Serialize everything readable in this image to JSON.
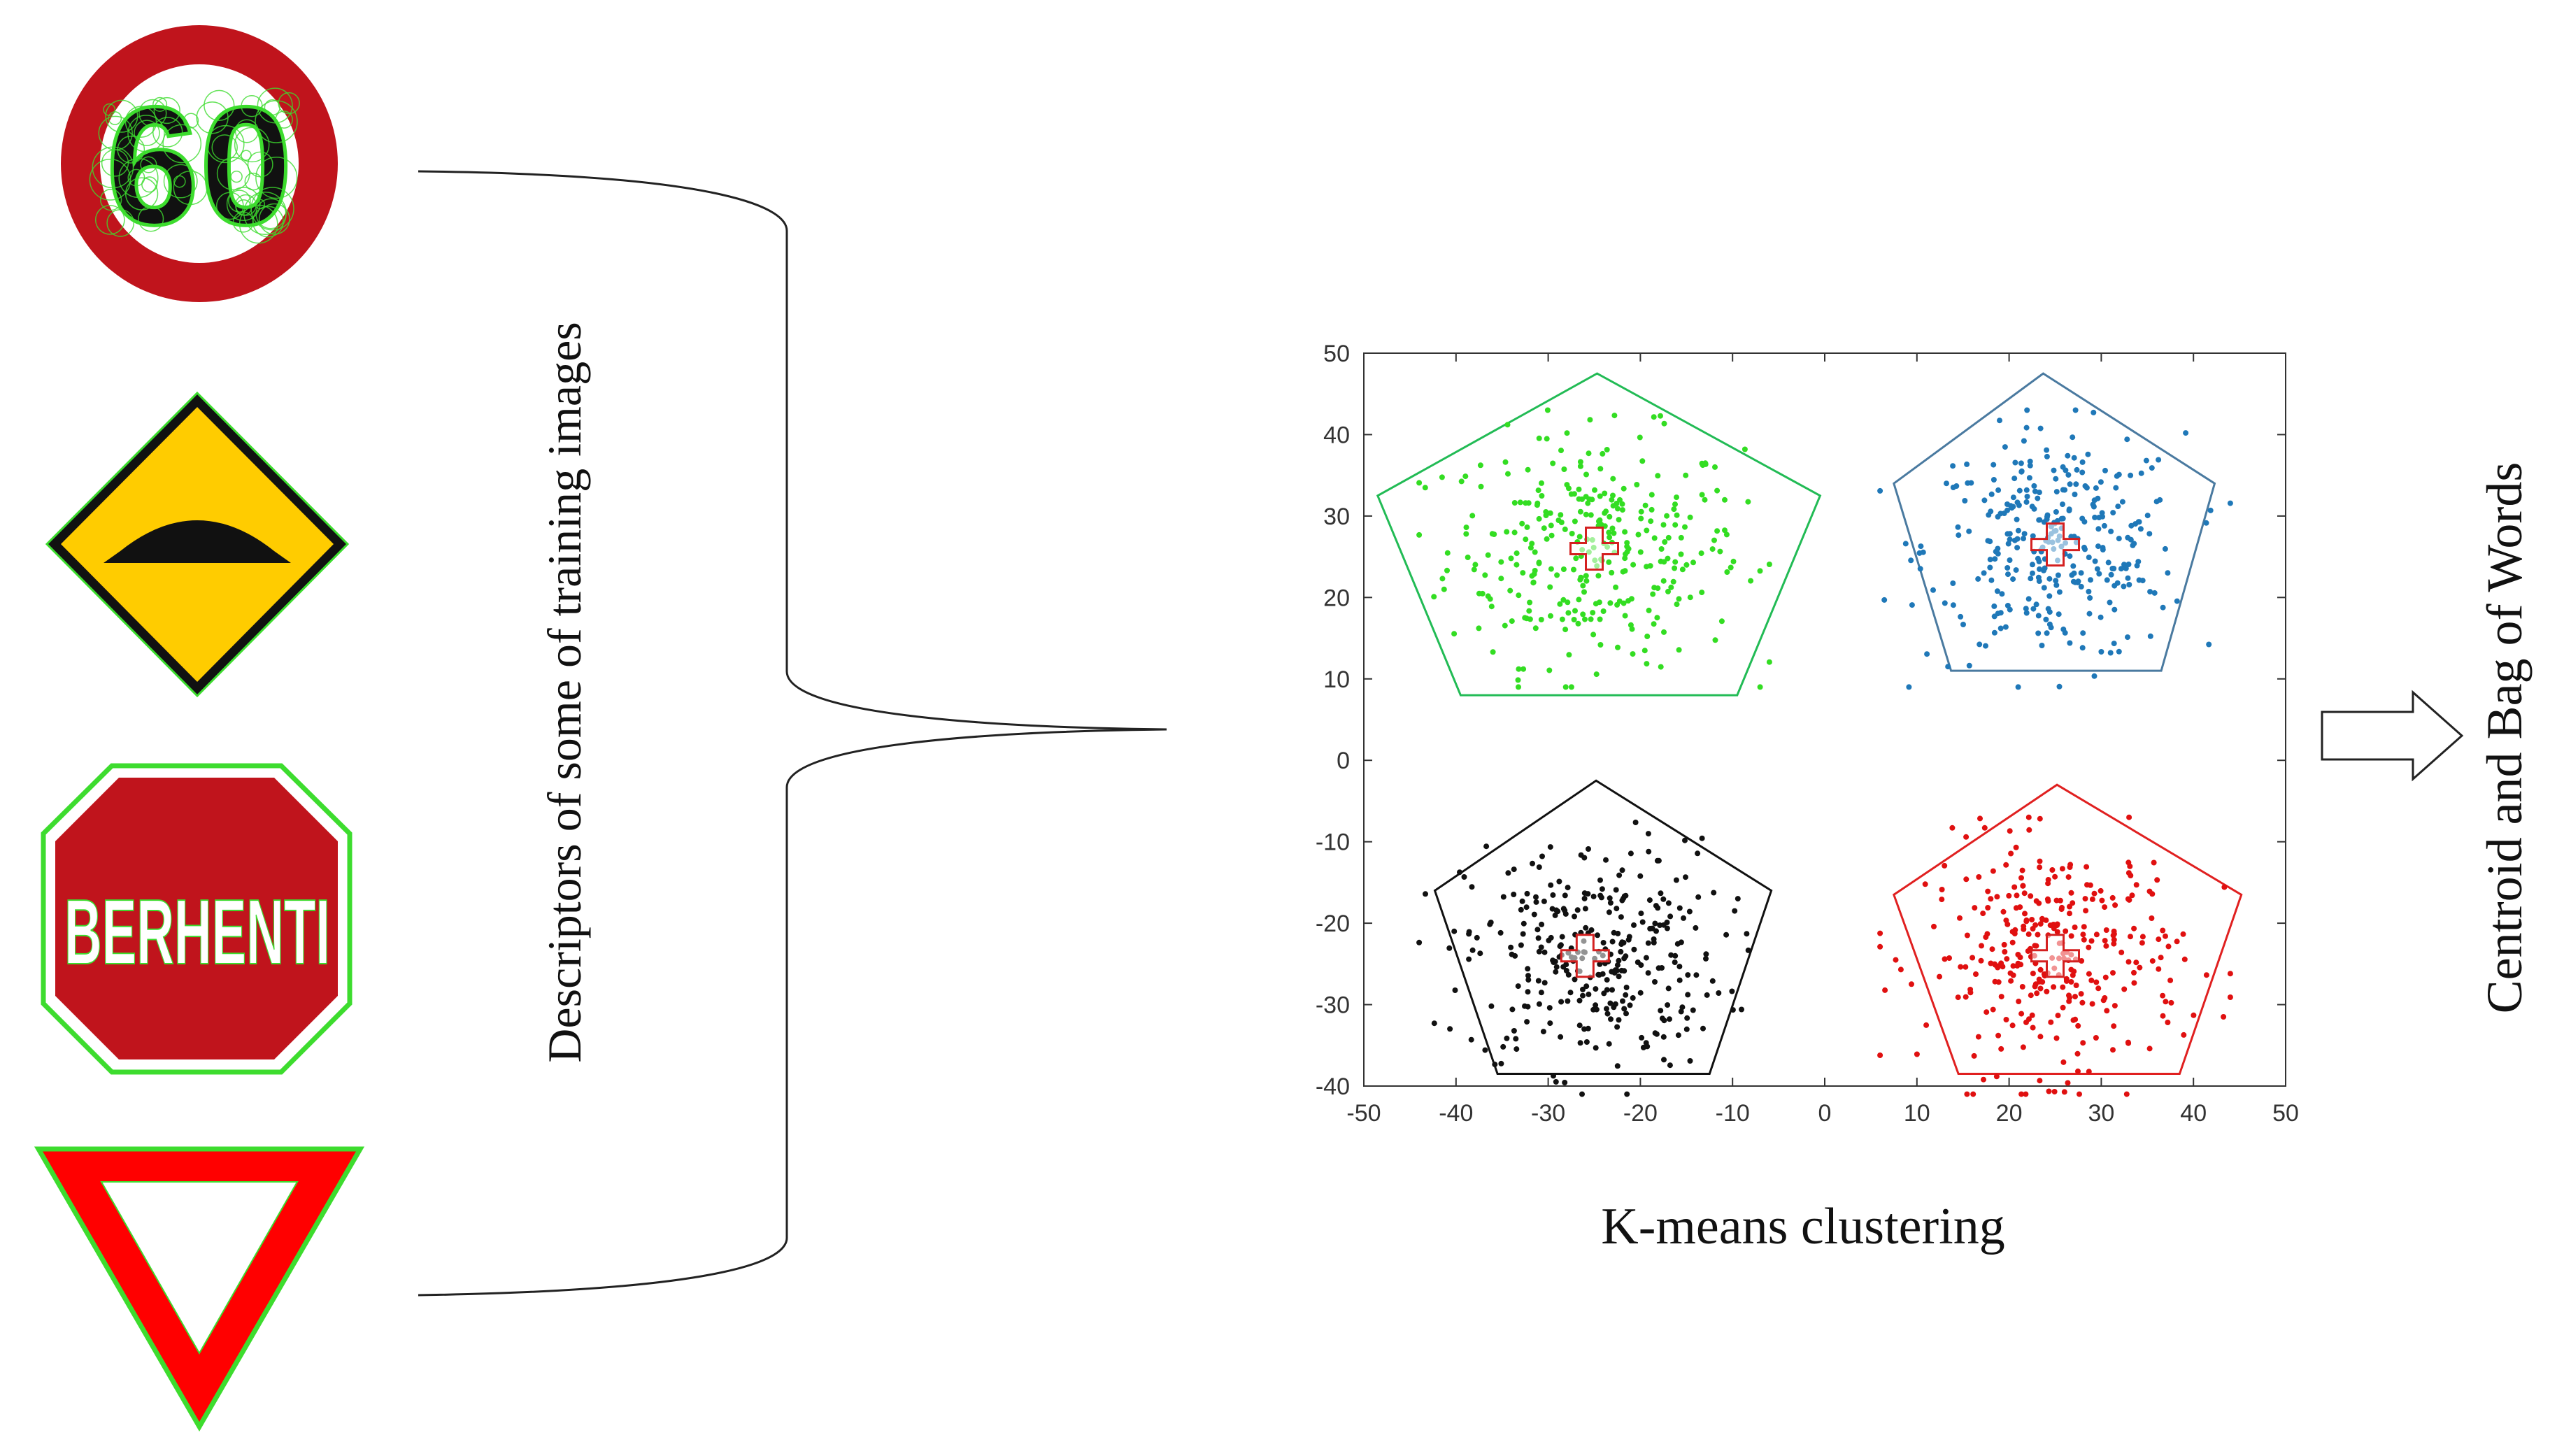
{
  "left_label": "Descriptors of some of training images",
  "right_label": "Centroid and Bag of Words",
  "signs": {
    "speed_limit_text": "60",
    "stop_text": "BERHENTI"
  },
  "colors": {
    "sign_red": "#c0141c",
    "sign_yellow": "#ffcc00",
    "feature_green": "#3ddc2e",
    "cluster_green": "#33dd22",
    "cluster_blue": "#1f78b8",
    "cluster_black": "#111111",
    "cluster_red": "#e01010",
    "hull_green": "#22bb55",
    "hull_blue": "#4a7aa0",
    "hull_black": "#111111",
    "hull_red": "#e02020"
  },
  "chart_data": {
    "type": "scatter",
    "title": "",
    "xlabel": "K-means clustering",
    "ylabel": "",
    "xlim": [
      -50,
      50
    ],
    "ylim": [
      -40,
      50
    ],
    "xticks": [
      "-50",
      "-40",
      "-30",
      "-20",
      "-10",
      "0",
      "10",
      "20",
      "30",
      "40",
      "50"
    ],
    "yticks": [
      "50",
      "40",
      "30",
      "20",
      "10",
      "0",
      "-10",
      "-20",
      "-30",
      "-40"
    ],
    "grid": false,
    "series": [
      {
        "color": "#33dd22",
        "center": [
          -25,
          26
        ],
        "spread": [
          8,
          7
        ],
        "count": 320
      },
      {
        "color": "#1f78b8",
        "center": [
          25,
          26
        ],
        "spread": [
          7,
          7
        ],
        "count": 320
      },
      {
        "color": "#111111",
        "center": [
          -25,
          -24
        ],
        "spread": [
          7,
          7
        ],
        "count": 320
      },
      {
        "color": "#e01010",
        "center": [
          25,
          -24
        ],
        "spread": [
          7,
          7
        ],
        "count": 320
      }
    ],
    "centroids": [
      [
        -25,
        26
      ],
      [
        25,
        26.5
      ],
      [
        -26,
        -24
      ],
      [
        25,
        -24
      ]
    ],
    "hulls": [
      {
        "color": "#22bb55",
        "vertices": [
          [
            -24.7,
            47.5
          ],
          [
            -0.5,
            32.5
          ],
          [
            -9.5,
            8
          ],
          [
            -39.5,
            8
          ],
          [
            -48.5,
            32.5
          ]
        ]
      },
      {
        "color": "#4a7aa0",
        "vertices": [
          [
            23.7,
            47.5
          ],
          [
            42.3,
            34
          ],
          [
            36.5,
            11
          ],
          [
            13.7,
            11
          ],
          [
            7.5,
            34
          ]
        ]
      },
      {
        "color": "#111111",
        "vertices": [
          [
            -24.8,
            -2.5
          ],
          [
            -5.8,
            -16
          ],
          [
            -12.5,
            -38.5
          ],
          [
            -35.5,
            -38.5
          ],
          [
            -42.3,
            -16
          ]
        ]
      },
      {
        "color": "#e02020",
        "vertices": [
          [
            25.2,
            -3
          ],
          [
            45.2,
            -16.5
          ],
          [
            38.5,
            -38.5
          ],
          [
            14.5,
            -38.5
          ],
          [
            7.5,
            -16.5
          ]
        ]
      }
    ]
  }
}
